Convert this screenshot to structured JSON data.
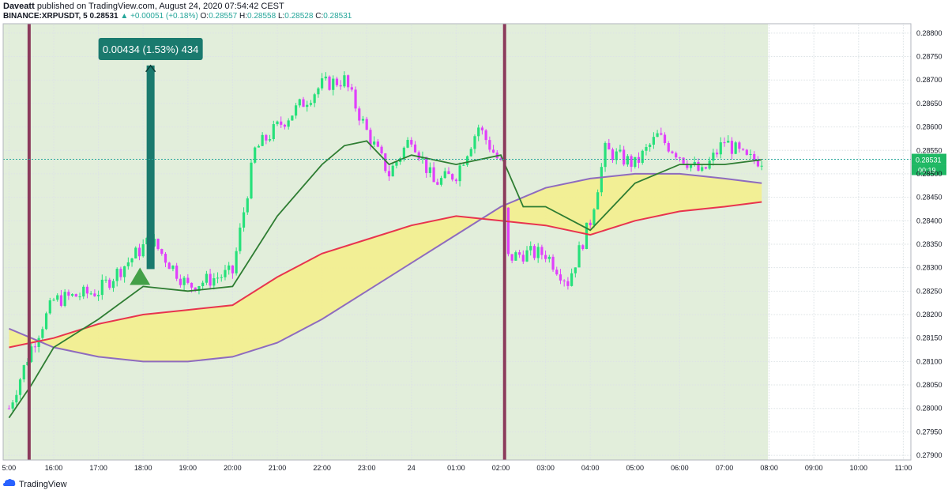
{
  "header": {
    "author": "Daveatt",
    "published": "published on TradingView.com, August 24, 2020 07:54:42 CEST",
    "symbol": "BINANCE:XRPUSDT, 5",
    "last": "0.28531",
    "change": "+0.00051 (+0.18%)",
    "o_label": "O:",
    "o": "0.28557",
    "h_label": "H:",
    "h": "0.28558",
    "l_label": "L:",
    "l": "0.28528",
    "c_label": "C:",
    "c": "0.28531"
  },
  "footer": {
    "brand": "TradingView"
  },
  "colors": {
    "bull": "#26e07a",
    "bear": "#e040fb",
    "session_bg": "#e2eedb",
    "fast_ma": "#2e7d32",
    "slow_ma": "#e8344e",
    "slower_ma": "#8e6bbf",
    "cloud": "#f5ee88",
    "session_line": "#8b3a5c",
    "measure": "#1a7a6e"
  },
  "chart_data": {
    "type": "candlestick",
    "price_axis_ticks": [
      "0.28800",
      "0.28750",
      "0.28700",
      "0.28650",
      "0.28600",
      "0.28550",
      "0.28500",
      "0.28450",
      "0.28400",
      "0.28350",
      "0.28300",
      "0.28250",
      "0.28200",
      "0.28150",
      "0.28100",
      "0.28050",
      "0.28000",
      "0.27950",
      "0.27900"
    ],
    "time_axis_ticks": [
      "5:00",
      "16:00",
      "17:00",
      "18:00",
      "19:00",
      "20:00",
      "21:00",
      "22:00",
      "23:00",
      "24",
      "01:00",
      "02:00",
      "03:00",
      "04:00",
      "05:00",
      "06:00",
      "07:00",
      "08:00",
      "09:00",
      "10:00",
      "11:00"
    ],
    "ylim": [
      0.2789,
      0.2882
    ],
    "current_price": "0.28531",
    "countdown": "00:19",
    "measure_label": "0.00434 (1.53%) 434",
    "measure_range": [
      0.28297,
      0.28731
    ],
    "session_starts": [
      "15:27",
      "02:05"
    ],
    "key_prices": [
      {
        "time": "15:00",
        "price": 0.28
      },
      {
        "time": "15:30",
        "price": 0.2813
      },
      {
        "time": "16:00",
        "price": 0.2823
      },
      {
        "time": "17:00",
        "price": 0.2825
      },
      {
        "time": "18:10",
        "price": 0.2836
      },
      {
        "time": "19:00",
        "price": 0.2826
      },
      {
        "time": "20:00",
        "price": 0.2829
      },
      {
        "time": "20:30",
        "price": 0.2855
      },
      {
        "time": "21:00",
        "price": 0.286
      },
      {
        "time": "22:00",
        "price": 0.2869
      },
      {
        "time": "22:30",
        "price": 0.287
      },
      {
        "time": "23:00",
        "price": 0.2859
      },
      {
        "time": "23:30",
        "price": 0.285
      },
      {
        "time": "00:00",
        "price": 0.2858
      },
      {
        "time": "00:30",
        "price": 0.2848
      },
      {
        "time": "01:00",
        "price": 0.285
      },
      {
        "time": "01:30",
        "price": 0.286
      },
      {
        "time": "02:00",
        "price": 0.2852
      },
      {
        "time": "02:10",
        "price": 0.2832
      },
      {
        "time": "02:30",
        "price": 0.2833
      },
      {
        "time": "03:00",
        "price": 0.2833
      },
      {
        "time": "03:30",
        "price": 0.2827
      },
      {
        "time": "04:00",
        "price": 0.284
      },
      {
        "time": "04:20",
        "price": 0.2855
      },
      {
        "time": "05:00",
        "price": 0.2852
      },
      {
        "time": "05:30",
        "price": 0.2858
      },
      {
        "time": "06:00",
        "price": 0.2854
      },
      {
        "time": "06:30",
        "price": 0.285
      },
      {
        "time": "07:00",
        "price": 0.2857
      },
      {
        "time": "07:30",
        "price": 0.2853
      },
      {
        "time": "07:50",
        "price": 0.2853
      }
    ],
    "fast_ma": [
      {
        "time": "15:00",
        "price": 0.2798
      },
      {
        "time": "15:30",
        "price": 0.2805
      },
      {
        "time": "16:00",
        "price": 0.2813
      },
      {
        "time": "17:00",
        "price": 0.2819
      },
      {
        "time": "18:00",
        "price": 0.2826
      },
      {
        "time": "19:00",
        "price": 0.2825
      },
      {
        "time": "20:00",
        "price": 0.2826
      },
      {
        "time": "21:00",
        "price": 0.2841
      },
      {
        "time": "22:00",
        "price": 0.2852
      },
      {
        "time": "22:30",
        "price": 0.2856
      },
      {
        "time": "23:00",
        "price": 0.2857
      },
      {
        "time": "23:30",
        "price": 0.2852
      },
      {
        "time": "00:00",
        "price": 0.2854
      },
      {
        "time": "01:00",
        "price": 0.2852
      },
      {
        "time": "02:00",
        "price": 0.2854
      },
      {
        "time": "02:30",
        "price": 0.2843
      },
      {
        "time": "03:00",
        "price": 0.2843
      },
      {
        "time": "04:00",
        "price": 0.2838
      },
      {
        "time": "05:00",
        "price": 0.2848
      },
      {
        "time": "06:00",
        "price": 0.2852
      },
      {
        "time": "07:00",
        "price": 0.2852
      },
      {
        "time": "07:50",
        "price": 0.2853
      }
    ],
    "slow_ma": [
      {
        "time": "15:00",
        "price": 0.2813
      },
      {
        "time": "16:00",
        "price": 0.2815
      },
      {
        "time": "17:00",
        "price": 0.2818
      },
      {
        "time": "18:00",
        "price": 0.282
      },
      {
        "time": "19:00",
        "price": 0.2821
      },
      {
        "time": "20:00",
        "price": 0.2822
      },
      {
        "time": "21:00",
        "price": 0.2828
      },
      {
        "time": "22:00",
        "price": 0.2833
      },
      {
        "time": "23:00",
        "price": 0.2836
      },
      {
        "time": "00:00",
        "price": 0.2839
      },
      {
        "time": "01:00",
        "price": 0.2841
      },
      {
        "time": "02:00",
        "price": 0.284
      },
      {
        "time": "03:00",
        "price": 0.2839
      },
      {
        "time": "04:00",
        "price": 0.2837
      },
      {
        "time": "05:00",
        "price": 0.284
      },
      {
        "time": "06:00",
        "price": 0.2842
      },
      {
        "time": "07:00",
        "price": 0.2843
      },
      {
        "time": "07:50",
        "price": 0.2844
      }
    ],
    "slower_ma": [
      {
        "time": "15:00",
        "price": 0.2817
      },
      {
        "time": "16:00",
        "price": 0.2813
      },
      {
        "time": "17:00",
        "price": 0.2811
      },
      {
        "time": "18:00",
        "price": 0.281
      },
      {
        "time": "19:00",
        "price": 0.281
      },
      {
        "time": "20:00",
        "price": 0.2811
      },
      {
        "time": "21:00",
        "price": 0.2814
      },
      {
        "time": "22:00",
        "price": 0.2819
      },
      {
        "time": "23:00",
        "price": 0.2825
      },
      {
        "time": "00:00",
        "price": 0.2831
      },
      {
        "time": "01:00",
        "price": 0.2837
      },
      {
        "time": "02:00",
        "price": 0.2843
      },
      {
        "time": "03:00",
        "price": 0.2847
      },
      {
        "time": "04:00",
        "price": 0.2849
      },
      {
        "time": "05:00",
        "price": 0.285
      },
      {
        "time": "06:00",
        "price": 0.285
      },
      {
        "time": "07:00",
        "price": 0.2849
      },
      {
        "time": "07:50",
        "price": 0.2848
      }
    ],
    "signal_markers": [
      {
        "time": "18:00",
        "price": 0.2828,
        "type": "buy"
      }
    ]
  }
}
